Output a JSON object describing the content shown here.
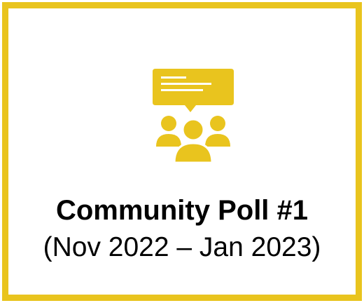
{
  "card": {
    "title": "Community Poll #1",
    "subtitle": "(Nov 2022 – Jan 2023)",
    "icon": "community-discussion-icon"
  },
  "colors": {
    "accent": "#E9C41E",
    "background": "#FFFFFF",
    "text": "#000000"
  }
}
